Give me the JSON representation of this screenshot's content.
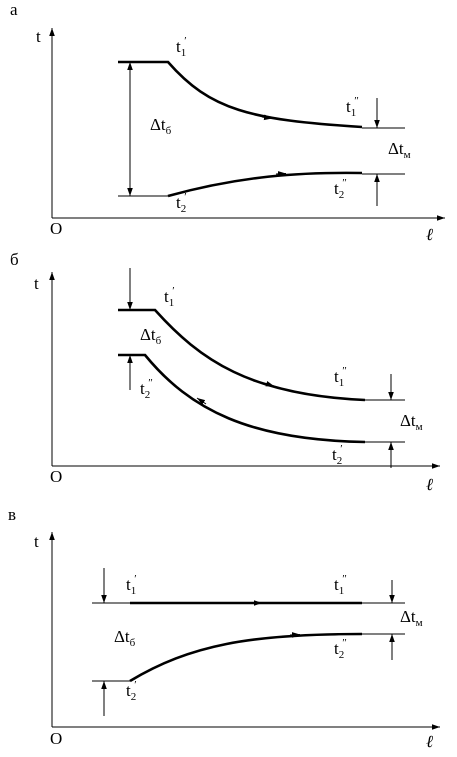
{
  "panels": [
    {
      "letter": "а",
      "axis": {
        "y": "t",
        "origin": "O",
        "x": "ℓ"
      },
      "labels": [
        {
          "base": "t",
          "sub": "1",
          "sup": "′"
        },
        {
          "base": "t",
          "sub": "1",
          "sup": "″"
        },
        {
          "base": "t",
          "sub": "2",
          "sup": "″"
        },
        {
          "base": "t",
          "sub": "2",
          "sup": "′"
        },
        {
          "base": "Δt",
          "sub": "б"
        },
        {
          "base": "Δt",
          "sub": "м"
        }
      ]
    },
    {
      "letter": "б",
      "axis": {
        "y": "t",
        "origin": "O",
        "x": "ℓ"
      },
      "labels": [
        {
          "base": "t",
          "sub": "1",
          "sup": "′"
        },
        {
          "base": "t",
          "sub": "1",
          "sup": "″"
        },
        {
          "base": "t",
          "sub": "2",
          "sup": "″"
        },
        {
          "base": "t",
          "sub": "2",
          "sup": "′"
        },
        {
          "base": "Δt",
          "sub": "б"
        },
        {
          "base": "Δt",
          "sub": "м"
        }
      ]
    },
    {
      "letter": "в",
      "axis": {
        "y": "t",
        "origin": "O",
        "x": "ℓ"
      },
      "labels": [
        {
          "base": "t",
          "sub": "1",
          "sup": "′"
        },
        {
          "base": "t",
          "sub": "1",
          "sup": "″"
        },
        {
          "base": "t",
          "sub": "2",
          "sup": "″"
        },
        {
          "base": "t",
          "sub": "2",
          "sup": "′"
        },
        {
          "base": "Δt",
          "sub": "б"
        },
        {
          "base": "Δt",
          "sub": "м"
        }
      ]
    }
  ]
}
